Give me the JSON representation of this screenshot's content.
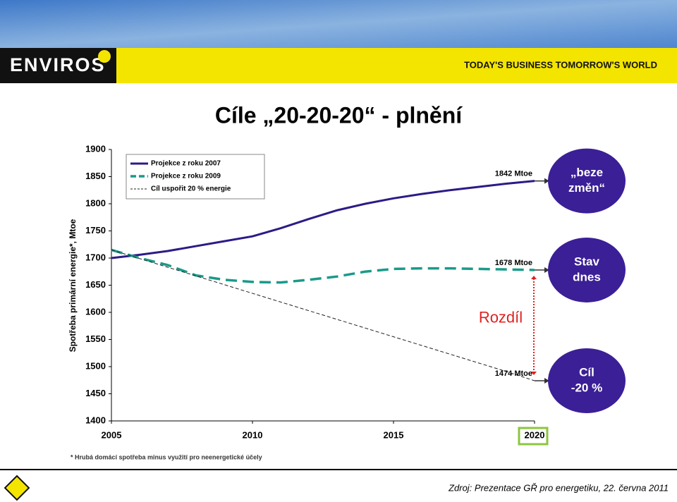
{
  "header": {
    "logo": "ENVIROS",
    "tagline": "TODAY'S BUSINESS TOMORROW'S WORLD"
  },
  "chart_data": {
    "type": "line",
    "title": "Cíle „20-20-20“ - plnění",
    "y_label": "Spotřeba primární energie*, Mtoe",
    "x": [
      2005,
      2006,
      2007,
      2008,
      2009,
      2010,
      2011,
      2012,
      2013,
      2014,
      2015,
      2016,
      2017,
      2018,
      2019,
      2020
    ],
    "series": [
      {
        "name": "Projekce z roku 2007",
        "color": "#2e1a87",
        "line_style": "solid",
        "values": [
          1700,
          1706,
          1713,
          1722,
          1731,
          1740,
          1755,
          1772,
          1788,
          1800,
          1810,
          1818,
          1825,
          1831,
          1837,
          1842
        ]
      },
      {
        "name": "Projekce z roku 2009",
        "color": "#1a9a8a",
        "line_style": "dashed",
        "values": [
          1715,
          1700,
          1687,
          1668,
          1660,
          1656,
          1655,
          1660,
          1666,
          1675,
          1680,
          1681,
          1681,
          1680,
          1679,
          1678
        ]
      },
      {
        "name": "Cíl uspořit 20 % energie",
        "color": "#222222",
        "line_style": "thin-dashed",
        "values": [
          1715,
          1699,
          1683,
          1667,
          1651,
          1635,
          1619,
          1603,
          1587,
          1571,
          1555,
          1539,
          1523,
          1507,
          1491,
          1474
        ]
      }
    ],
    "xlim": [
      2005,
      2020
    ],
    "xticks": [
      2005,
      2010,
      2015,
      2020
    ],
    "ylim": [
      1400,
      1900
    ],
    "yticks": [
      1400,
      1450,
      1500,
      1550,
      1600,
      1650,
      1700,
      1750,
      1800,
      1850,
      1900
    ],
    "annotations": {
      "end_labels": [
        "1842 Mtoe",
        "1678 Mtoe",
        "1474 Mtoe"
      ],
      "difference": "Rozdíl",
      "bubbles": [
        [
          "„beze",
          "změn“"
        ],
        [
          "Stav",
          "dnes"
        ],
        [
          "Cíl",
          "-20 %"
        ]
      ]
    },
    "footnote": "* Hrubá domácí spotřeba minus využití pro neenergetické účely"
  },
  "footer": {
    "source": "Zdroj: Prezentace GŘ pro energetiku, 22. června 2011"
  }
}
